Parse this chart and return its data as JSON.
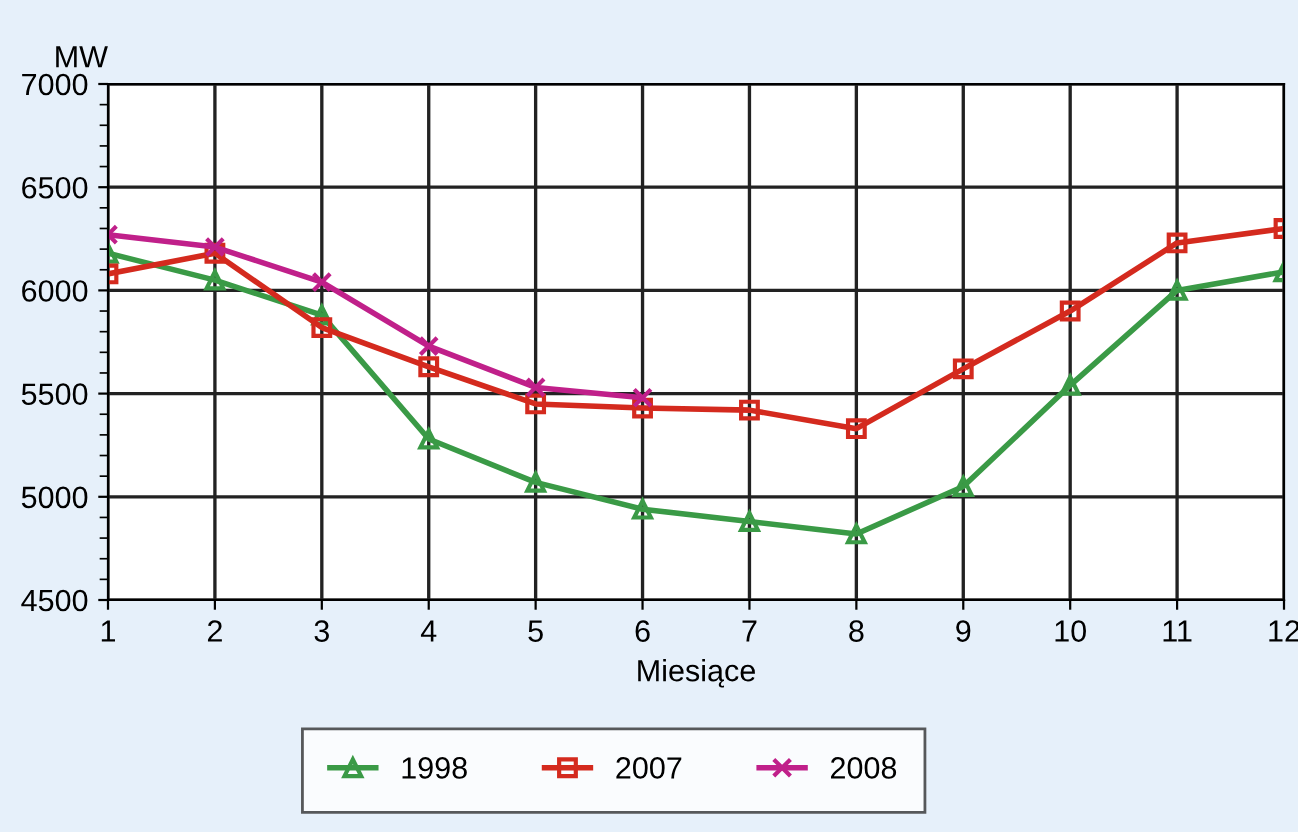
{
  "chart_data": {
    "type": "line",
    "ylabel": "MW",
    "xlabel": "Miesiące",
    "x": [
      1,
      2,
      3,
      4,
      5,
      6,
      7,
      8,
      9,
      10,
      11,
      12
    ],
    "xlim": [
      1,
      12
    ],
    "xticks": [
      1,
      2,
      3,
      4,
      5,
      6,
      7,
      8,
      9,
      10,
      11,
      12
    ],
    "ylim": [
      4500,
      7000
    ],
    "yticks": [
      4500,
      5000,
      5500,
      6000,
      6500,
      7000
    ],
    "grid": true,
    "legend": "bottom",
    "series": [
      {
        "name": "1998",
        "color": "#3a9a46",
        "marker": "triangle",
        "values": [
          6180,
          6050,
          5880,
          5280,
          5070,
          4940,
          4880,
          4820,
          5050,
          5540,
          6000,
          6090
        ]
      },
      {
        "name": "2007",
        "color": "#d42a1e",
        "marker": "square",
        "values": [
          6080,
          6180,
          5820,
          5630,
          5450,
          5430,
          5420,
          5330,
          5620,
          5900,
          6230,
          6300
        ]
      },
      {
        "name": "2008",
        "color": "#c0208a",
        "marker": "cross",
        "values": [
          6270,
          6210,
          6040,
          5730,
          5530,
          5480,
          null,
          null,
          null,
          null,
          null,
          null
        ]
      }
    ]
  }
}
